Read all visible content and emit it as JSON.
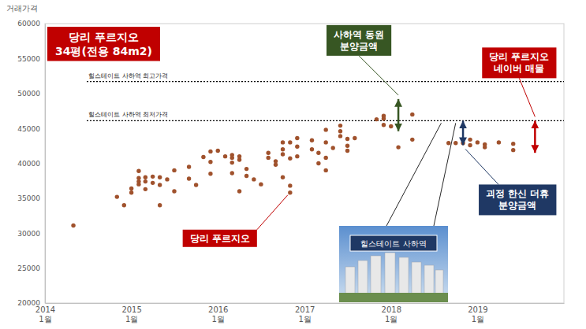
{
  "chart_data": {
    "type": "scatter",
    "title": "당리 푸르지오\n34평(전용 84m2)",
    "y_label": "거래가격",
    "color": "#a0522d",
    "marker": "circle",
    "grid": false,
    "x": [
      "2014-05",
      "2014-11",
      "2014-12",
      "2015-01",
      "2015-01",
      "2015-02",
      "2015-02",
      "2015-02",
      "2015-02",
      "2015-03",
      "2015-03",
      "2015-03",
      "2015-04",
      "2015-04",
      "2015-05",
      "2015-05",
      "2015-05",
      "2015-06",
      "2015-07",
      "2015-07",
      "2015-09",
      "2015-09",
      "2015-10",
      "2015-11",
      "2015-12",
      "2015-12",
      "2015-12",
      "2016-01",
      "2016-02",
      "2016-03",
      "2016-03",
      "2016-03",
      "2016-03",
      "2016-04",
      "2016-04",
      "2016-04",
      "2016-05",
      "2016-05",
      "2016-06",
      "2016-07",
      "2016-08",
      "2016-08",
      "2016-09",
      "2016-09",
      "2016-10",
      "2016-10",
      "2016-10",
      "2016-10",
      "2016-11",
      "2016-11",
      "2016-11",
      "2016-11",
      "2016-12",
      "2016-12",
      "2016-12",
      "2017-02",
      "2017-02",
      "2017-03",
      "2017-03",
      "2017-04",
      "2017-04",
      "2017-04",
      "2017-04",
      "2017-05",
      "2017-06",
      "2017-06",
      "2017-06",
      "2017-07",
      "2017-07",
      "2017-07",
      "2017-08",
      "2017-11",
      "2017-12",
      "2017-12",
      "2017-12",
      "2018-01",
      "2018-04",
      "2018-02",
      "2018-04",
      "2018-09",
      "2018-10",
      "2018-11",
      "2018-12",
      "2018-12",
      "2019-01",
      "2019-02",
      "2019-02",
      "2019-04",
      "2019-06",
      "2019-06"
    ],
    "values": [
      31100,
      35200,
      34000,
      35800,
      36400,
      37400,
      38900,
      37900,
      37000,
      36300,
      37400,
      38000,
      38100,
      37200,
      38000,
      36900,
      34000,
      37700,
      36000,
      39000,
      39500,
      37800,
      36900,
      40900,
      41700,
      40200,
      38500,
      41800,
      41000,
      41200,
      40800,
      40100,
      38600,
      40500,
      41000,
      36000,
      39200,
      38200,
      37700,
      37000,
      41500,
      40800,
      39800,
      40300,
      43000,
      42000,
      41300,
      38000,
      43000,
      40700,
      36800,
      35800,
      42400,
      41000,
      43600,
      42000,
      43300,
      41500,
      40000,
      44800,
      43000,
      40800,
      39000,
      42200,
      45400,
      44600,
      43900,
      43500,
      42500,
      41800,
      43600,
      46300,
      46400,
      45500,
      46800,
      45300,
      47000,
      42300,
      43400,
      42900,
      42900,
      42900,
      43400,
      42600,
      43000,
      42700,
      42300,
      43000,
      42800,
      41900
    ],
    "xlim": [
      "2014-01",
      "2020-01"
    ],
    "xticks": [
      {
        "value": "2014-01",
        "label": "2014\n1월"
      },
      {
        "value": "2015-01",
        "label": "2015\n1월"
      },
      {
        "value": "2016-01",
        "label": "2016\n1월"
      },
      {
        "value": "2017-01",
        "label": "2017\n1월"
      },
      {
        "value": "2018-01",
        "label": "2018\n1월"
      },
      {
        "value": "2019-01",
        "label": "2019\n1월"
      }
    ],
    "ylim": [
      20000,
      60000
    ],
    "yticks": [
      20000,
      25000,
      30000,
      35000,
      40000,
      45000,
      50000,
      55000,
      60000
    ],
    "reference_lines": [
      {
        "label": "힐스테이트 사하역 최고가격",
        "value": 51700,
        "line_style": "dotted"
      },
      {
        "label": "힐스테이트 사하역 최저가격",
        "value": 46100,
        "line_style": "dotted"
      }
    ],
    "ranges": [
      {
        "label": "사하역 동원\n분양금액",
        "x": "2018-02",
        "from": 44600,
        "to": 49200,
        "color": "#375623"
      },
      {
        "label": "괴정 한신 더휴\n분양금액",
        "x": "2018-11",
        "from": 46100,
        "to": 42600,
        "color": "#1f3864"
      },
      {
        "label": "당리 푸르지오\n네이버 매물",
        "x": "2019-09",
        "from": 46100,
        "to": 41500,
        "color": "#c00000"
      }
    ],
    "point_label": {
      "text": "당리 푸르지오",
      "x": "2016-11",
      "value": 35800,
      "color": "#c00000"
    },
    "image_label": {
      "text": "힐스테이트 사하역",
      "x": [
        "2018-08",
        "2018-10"
      ]
    }
  }
}
